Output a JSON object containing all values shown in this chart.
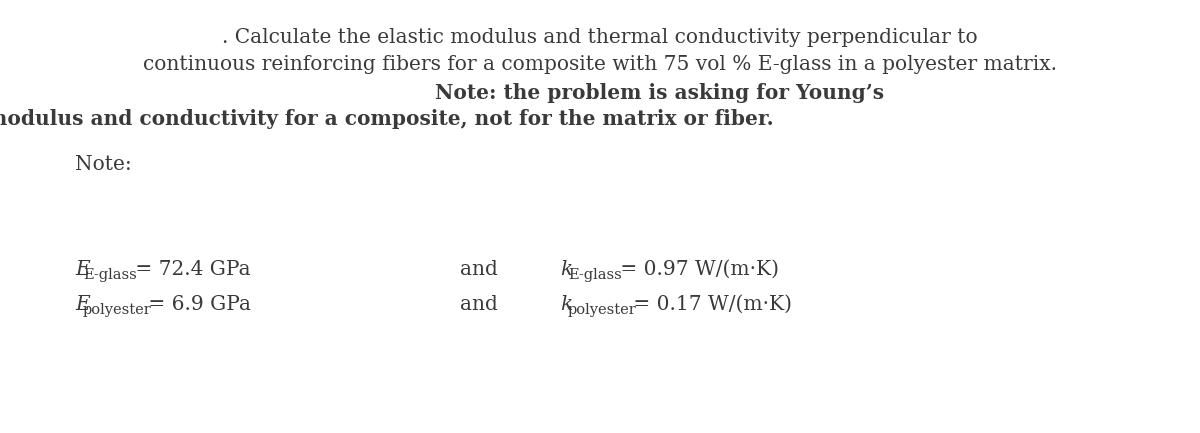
{
  "bg_color": "#ffffff",
  "line1": ". Calculate the elastic modulus and thermal conductivity perpendicular to",
  "line2": "continuous reinforcing fibers for a composite with 75 vol % E-glass in a polyester matrix.",
  "line3_bold": "Note: the problem is asking for Young’s",
  "line4_bold": "modulus and conductivity for a composite, not for the matrix or fiber.",
  "note_label": "Note:",
  "font_size_body": 14.5,
  "font_size_bold": 14.5,
  "font_size_eq": 14.5,
  "font_size_sub": 10.5
}
